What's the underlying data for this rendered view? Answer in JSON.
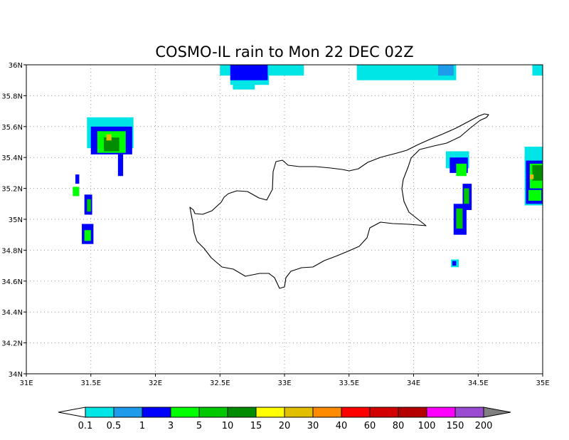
{
  "title": "COSMO-IL rain to Mon 22 DEC 02Z",
  "map": {
    "lon_range": [
      31,
      35
    ],
    "lat_range": [
      34,
      36
    ],
    "lon_ticks": [
      31,
      31.5,
      32,
      32.5,
      33,
      33.5,
      34,
      34.5,
      35
    ],
    "lon_tick_labels": [
      "31E",
      "31.5E",
      "32E",
      "32.5E",
      "33E",
      "33.5E",
      "34E",
      "34.5E",
      "35E"
    ],
    "lat_ticks": [
      34,
      34.2,
      34.4,
      34.6,
      34.8,
      35,
      35.2,
      35.4,
      35.6,
      35.8,
      36
    ],
    "lat_tick_labels": [
      "34N",
      "34.2N",
      "34.4N",
      "34.6N",
      "34.8N",
      "35N",
      "35.2N",
      "35.4N",
      "35.6N",
      "35.8N",
      "36N"
    ],
    "grid": true,
    "coastline": "Cyprus",
    "rain_field": [
      {
        "lon": 32.5,
        "lat": 35.93,
        "w": 0.65,
        "h": 0.07,
        "level": 0.1
      },
      {
        "lon": 32.58,
        "lat": 35.87,
        "w": 0.3,
        "h": 0.06,
        "level": 0.1
      },
      {
        "lon": 32.6,
        "lat": 35.84,
        "w": 0.17,
        "h": 0.04,
        "level": 0.1
      },
      {
        "lon": 32.58,
        "lat": 35.9,
        "w": 0.29,
        "h": 0.1,
        "level": 1
      },
      {
        "lon": 33.56,
        "lat": 35.9,
        "w": 0.77,
        "h": 0.1,
        "level": 0.1
      },
      {
        "lon": 34.19,
        "lat": 35.93,
        "w": 0.12,
        "h": 0.07,
        "level": 0.5
      },
      {
        "lon": 34.92,
        "lat": 35.93,
        "w": 0.08,
        "h": 0.07,
        "level": 0.1
      },
      {
        "lon": 31.47,
        "lat": 35.46,
        "w": 0.36,
        "h": 0.2,
        "level": 0.1
      },
      {
        "lon": 31.5,
        "lat": 35.42,
        "w": 0.32,
        "h": 0.18,
        "level": 1
      },
      {
        "lon": 31.55,
        "lat": 35.43,
        "w": 0.22,
        "h": 0.14,
        "level": 3
      },
      {
        "lon": 31.6,
        "lat": 35.44,
        "w": 0.12,
        "h": 0.09,
        "level": 10
      },
      {
        "lon": 31.62,
        "lat": 35.51,
        "w": 0.04,
        "h": 0.04,
        "level": 20
      },
      {
        "lon": 31.71,
        "lat": 35.28,
        "w": 0.04,
        "h": 0.14,
        "level": 1
      },
      {
        "lon": 31.38,
        "lat": 35.23,
        "w": 0.03,
        "h": 0.06,
        "level": 1
      },
      {
        "lon": 31.36,
        "lat": 35.15,
        "w": 0.05,
        "h": 0.06,
        "level": 3
      },
      {
        "lon": 31.45,
        "lat": 35.03,
        "w": 0.06,
        "h": 0.13,
        "level": 1
      },
      {
        "lon": 31.47,
        "lat": 35.05,
        "w": 0.03,
        "h": 0.08,
        "level": 5
      },
      {
        "lon": 31.43,
        "lat": 34.84,
        "w": 0.09,
        "h": 0.13,
        "level": 1
      },
      {
        "lon": 31.45,
        "lat": 34.86,
        "w": 0.05,
        "h": 0.07,
        "level": 3
      },
      {
        "lon": 34.25,
        "lat": 35.33,
        "w": 0.18,
        "h": 0.11,
        "level": 0.1
      },
      {
        "lon": 34.28,
        "lat": 35.3,
        "w": 0.14,
        "h": 0.1,
        "level": 1
      },
      {
        "lon": 34.33,
        "lat": 35.28,
        "w": 0.08,
        "h": 0.08,
        "level": 3
      },
      {
        "lon": 34.38,
        "lat": 35.06,
        "w": 0.07,
        "h": 0.17,
        "level": 1
      },
      {
        "lon": 34.39,
        "lat": 35.1,
        "w": 0.04,
        "h": 0.1,
        "level": 5
      },
      {
        "lon": 34.31,
        "lat": 34.9,
        "w": 0.1,
        "h": 0.2,
        "level": 1
      },
      {
        "lon": 34.33,
        "lat": 34.94,
        "w": 0.05,
        "h": 0.13,
        "level": 5
      },
      {
        "lon": 34.29,
        "lat": 34.69,
        "w": 0.06,
        "h": 0.05,
        "level": 0.1
      },
      {
        "lon": 34.3,
        "lat": 34.7,
        "w": 0.03,
        "h": 0.03,
        "level": 1
      },
      {
        "lon": 34.86,
        "lat": 35.09,
        "w": 0.14,
        "h": 0.38,
        "level": 0.1
      },
      {
        "lon": 34.87,
        "lat": 35.1,
        "w": 0.13,
        "h": 0.28,
        "level": 1
      },
      {
        "lon": 34.9,
        "lat": 35.2,
        "w": 0.1,
        "h": 0.16,
        "level": 3
      },
      {
        "lon": 34.92,
        "lat": 35.25,
        "w": 0.08,
        "h": 0.1,
        "level": 10
      },
      {
        "lon": 34.9,
        "lat": 35.26,
        "w": 0.03,
        "h": 0.03,
        "level": 20
      },
      {
        "lon": 34.89,
        "lat": 35.12,
        "w": 0.1,
        "h": 0.07,
        "level": 3
      }
    ]
  },
  "colorbar": {
    "levels": [
      "0.1",
      "0.5",
      "1",
      "3",
      "5",
      "10",
      "15",
      "20",
      "30",
      "40",
      "60",
      "80",
      "100",
      "150",
      "200"
    ],
    "colors": [
      "#00e6e6",
      "#1e9bea",
      "#0000ff",
      "#00ff00",
      "#00c800",
      "#008c00",
      "#ffff00",
      "#e1be00",
      "#ff8c00",
      "#ff0000",
      "#d20000",
      "#b40000",
      "#ff00ff",
      "#9b4bd2"
    ],
    "under_color": "#ffffff",
    "over_color": "#808080"
  }
}
